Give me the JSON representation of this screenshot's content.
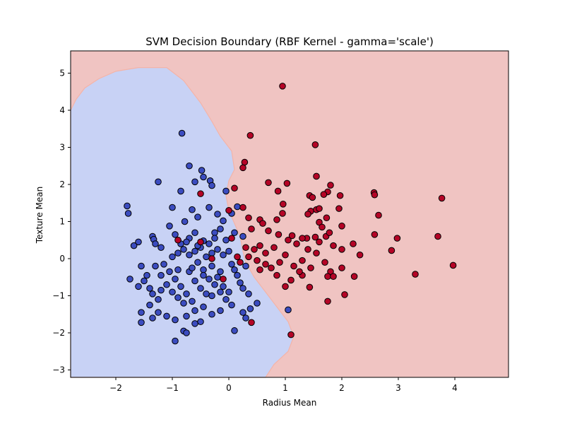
{
  "chart_data": {
    "type": "scatter",
    "title": "SVM Decision Boundary (RBF Kernel - gamma='scale')",
    "xlabel": "Radius Mean",
    "ylabel": "Texture Mean",
    "xlim": [
      -2.8,
      4.95
    ],
    "ylim": [
      -3.2,
      5.6
    ],
    "xticks": [
      -2,
      -1,
      0,
      1,
      2,
      3,
      4
    ],
    "yticks": [
      -3,
      -2,
      -1,
      0,
      1,
      2,
      3,
      4,
      5
    ],
    "grid": false,
    "colors": {
      "class0_region": "#c8d2f5",
      "class1_region": "#f0c4c2",
      "class0_point": "#3b4cc0",
      "class1_point": "#b40426",
      "point_edge": "#000000"
    },
    "boundary": [
      [
        -2.8,
        4.0
      ],
      [
        -2.7,
        4.3
      ],
      [
        -2.55,
        4.6
      ],
      [
        -2.3,
        4.85
      ],
      [
        -2.0,
        5.05
      ],
      [
        -1.6,
        5.15
      ],
      [
        -1.1,
        5.15
      ],
      [
        -0.8,
        4.8
      ],
      [
        -0.5,
        4.2
      ],
      [
        -0.3,
        3.7
      ],
      [
        -0.15,
        3.3
      ],
      [
        0.05,
        2.9
      ],
      [
        0.1,
        2.4
      ],
      [
        0.0,
        2.1
      ],
      [
        -0.05,
        1.7
      ],
      [
        0.0,
        1.3
      ],
      [
        0.2,
        0.6
      ],
      [
        0.25,
        0.2
      ],
      [
        0.3,
        -0.1
      ],
      [
        0.45,
        -0.5
      ],
      [
        0.65,
        -0.9
      ],
      [
        0.85,
        -1.3
      ],
      [
        1.05,
        -1.7
      ],
      [
        1.15,
        -2.1
      ],
      [
        1.05,
        -2.5
      ],
      [
        0.8,
        -2.85
      ],
      [
        0.65,
        -3.2
      ]
    ],
    "series": [
      {
        "class": 0,
        "points": [
          [
            -0.83,
            3.38
          ],
          [
            -0.7,
            2.5
          ],
          [
            -0.48,
            2.38
          ],
          [
            -0.45,
            2.2
          ],
          [
            -0.6,
            2.07
          ],
          [
            -0.33,
            2.1
          ],
          [
            -1.25,
            2.07
          ],
          [
            -0.3,
            1.97
          ],
          [
            -0.85,
            1.82
          ],
          [
            -0.05,
            1.82
          ],
          [
            -1.8,
            1.42
          ],
          [
            -1.78,
            1.22
          ],
          [
            -1.0,
            1.38
          ],
          [
            -0.65,
            1.32
          ],
          [
            -0.78,
            1.0
          ],
          [
            -0.55,
            1.12
          ],
          [
            -0.35,
            1.38
          ],
          [
            -0.1,
            1.02
          ],
          [
            0.15,
            1.4
          ],
          [
            0.05,
            1.22
          ],
          [
            -1.05,
            0.88
          ],
          [
            -0.95,
            0.65
          ],
          [
            -1.35,
            0.6
          ],
          [
            -1.33,
            0.52
          ],
          [
            -1.6,
            0.45
          ],
          [
            -1.68,
            0.35
          ],
          [
            -1.3,
            0.4
          ],
          [
            -1.2,
            0.3
          ],
          [
            -0.7,
            0.55
          ],
          [
            -0.6,
            0.7
          ],
          [
            -0.45,
            0.48
          ],
          [
            -0.25,
            0.7
          ],
          [
            -0.05,
            0.5
          ],
          [
            -0.15,
            0.8
          ],
          [
            0.1,
            0.7
          ],
          [
            0.25,
            0.6
          ],
          [
            -1.75,
            -0.55
          ],
          [
            -1.6,
            -0.75
          ],
          [
            -1.5,
            -0.6
          ],
          [
            -1.4,
            -0.8
          ],
          [
            -1.3,
            -0.2
          ],
          [
            -1.2,
            -0.45
          ],
          [
            -1.1,
            -0.7
          ],
          [
            -1.0,
            -0.9
          ],
          [
            -0.9,
            -1.05
          ],
          [
            -0.8,
            -1.2
          ],
          [
            -0.7,
            -0.35
          ],
          [
            -0.6,
            -0.6
          ],
          [
            -0.5,
            -0.8
          ],
          [
            -0.4,
            -0.95
          ],
          [
            -0.3,
            -0.2
          ],
          [
            -0.2,
            -0.5
          ],
          [
            -0.1,
            -0.75
          ],
          [
            0.0,
            -0.9
          ],
          [
            0.1,
            -0.3
          ],
          [
            0.2,
            -0.65
          ],
          [
            -1.55,
            -0.2
          ],
          [
            -1.45,
            -0.45
          ],
          [
            -1.35,
            -0.95
          ],
          [
            -1.25,
            -1.1
          ],
          [
            -1.15,
            -0.15
          ],
          [
            -1.05,
            -0.35
          ],
          [
            -0.95,
            -0.55
          ],
          [
            -0.85,
            -0.75
          ],
          [
            -0.75,
            -0.95
          ],
          [
            -0.65,
            -1.15
          ],
          [
            -0.55,
            -0.1
          ],
          [
            -0.45,
            -0.3
          ],
          [
            -0.35,
            -0.55
          ],
          [
            -0.25,
            -0.7
          ],
          [
            -0.15,
            -0.9
          ],
          [
            -0.05,
            -1.1
          ],
          [
            0.05,
            -0.15
          ],
          [
            0.15,
            -0.45
          ],
          [
            0.25,
            -0.8
          ],
          [
            0.35,
            -0.95
          ],
          [
            -1.0,
            0.05
          ],
          [
            -0.9,
            0.15
          ],
          [
            -0.8,
            0.25
          ],
          [
            -0.7,
            0.1
          ],
          [
            -0.6,
            0.2
          ],
          [
            -0.5,
            0.3
          ],
          [
            -0.4,
            0.05
          ],
          [
            -0.3,
            0.15
          ],
          [
            -0.2,
            0.25
          ],
          [
            -0.1,
            0.1
          ],
          [
            0.0,
            0.2
          ],
          [
            -0.85,
            0.4
          ],
          [
            -0.75,
            0.45
          ],
          [
            -0.55,
            0.35
          ],
          [
            -0.35,
            0.4
          ],
          [
            -0.25,
            0.55
          ],
          [
            -0.65,
            -0.25
          ],
          [
            -0.45,
            -0.45
          ],
          [
            -0.15,
            -0.35
          ],
          [
            -1.4,
            -1.25
          ],
          [
            -1.25,
            -1.45
          ],
          [
            -1.1,
            -1.55
          ],
          [
            -0.95,
            -1.65
          ],
          [
            -0.75,
            -1.55
          ],
          [
            -0.6,
            -1.4
          ],
          [
            -0.45,
            -1.3
          ],
          [
            -0.3,
            -1.5
          ],
          [
            -0.15,
            -1.4
          ],
          [
            0.05,
            -1.25
          ],
          [
            0.25,
            -1.45
          ],
          [
            -1.55,
            -1.45
          ],
          [
            -1.55,
            -1.72
          ],
          [
            -1.35,
            -1.6
          ],
          [
            -0.8,
            -1.95
          ],
          [
            -0.75,
            -2.0
          ],
          [
            -0.5,
            -1.7
          ],
          [
            -0.95,
            -2.22
          ],
          [
            -0.6,
            -1.75
          ],
          [
            0.1,
            -1.94
          ],
          [
            0.3,
            -1.6
          ],
          [
            0.38,
            -1.35
          ],
          [
            0.5,
            -1.2
          ],
          [
            1.05,
            -1.38
          ],
          [
            -0.3,
            -1.0
          ],
          [
            -0.9,
            -0.3
          ],
          [
            -1.2,
            -0.85
          ],
          [
            0.3,
            -0.2
          ],
          [
            -0.2,
            1.2
          ]
        ]
      },
      {
        "class": 1,
        "points": [
          [
            0.95,
            4.65
          ],
          [
            0.38,
            3.32
          ],
          [
            1.53,
            3.07
          ],
          [
            0.28,
            2.6
          ],
          [
            0.25,
            2.45
          ],
          [
            0.7,
            2.05
          ],
          [
            1.03,
            2.03
          ],
          [
            1.55,
            2.22
          ],
          [
            0.87,
            1.82
          ],
          [
            1.8,
            1.98
          ],
          [
            1.75,
            1.8
          ],
          [
            1.68,
            1.73
          ],
          [
            1.97,
            1.7
          ],
          [
            2.57,
            1.78
          ],
          [
            2.58,
            1.72
          ],
          [
            3.77,
            1.63
          ],
          [
            1.43,
            1.7
          ],
          [
            1.48,
            1.65
          ],
          [
            0.96,
            1.47
          ],
          [
            0.1,
            1.9
          ],
          [
            -0.5,
            1.75
          ],
          [
            0.0,
            1.3
          ],
          [
            0.95,
            1.22
          ],
          [
            1.45,
            1.28
          ],
          [
            1.55,
            1.32
          ],
          [
            1.6,
            1.35
          ],
          [
            1.95,
            1.35
          ],
          [
            2.65,
            1.17
          ],
          [
            0.25,
            1.38
          ],
          [
            0.35,
            1.1
          ],
          [
            0.55,
            1.05
          ],
          [
            0.6,
            0.95
          ],
          [
            0.85,
            1.05
          ],
          [
            1.4,
            1.2
          ],
          [
            1.73,
            1.1
          ],
          [
            2.0,
            0.88
          ],
          [
            1.6,
            0.98
          ],
          [
            1.65,
            0.85
          ],
          [
            0.4,
            0.8
          ],
          [
            0.7,
            0.75
          ],
          [
            0.88,
            0.65
          ],
          [
            1.12,
            0.62
          ],
          [
            1.38,
            0.55
          ],
          [
            1.53,
            0.58
          ],
          [
            1.72,
            0.6
          ],
          [
            1.78,
            0.7
          ],
          [
            2.2,
            0.4
          ],
          [
            2.58,
            0.65
          ],
          [
            2.98,
            0.55
          ],
          [
            3.7,
            0.6
          ],
          [
            0.3,
            0.3
          ],
          [
            0.45,
            0.25
          ],
          [
            0.55,
            0.35
          ],
          [
            0.65,
            0.15
          ],
          [
            0.8,
            0.3
          ],
          [
            1.05,
            0.5
          ],
          [
            1.2,
            0.4
          ],
          [
            1.3,
            0.55
          ],
          [
            1.4,
            0.25
          ],
          [
            1.6,
            0.45
          ],
          [
            1.85,
            0.35
          ],
          [
            2.0,
            0.25
          ],
          [
            2.32,
            0.1
          ],
          [
            2.88,
            0.22
          ],
          [
            0.35,
            0.05
          ],
          [
            0.5,
            -0.05
          ],
          [
            0.65,
            -0.15
          ],
          [
            0.75,
            -0.25
          ],
          [
            0.9,
            -0.1
          ],
          [
            1.0,
            0.1
          ],
          [
            1.15,
            -0.2
          ],
          [
            1.3,
            -0.05
          ],
          [
            1.45,
            -0.25
          ],
          [
            1.55,
            0.15
          ],
          [
            1.7,
            -0.1
          ],
          [
            1.8,
            -0.35
          ],
          [
            2.0,
            -0.25
          ],
          [
            2.22,
            -0.48
          ],
          [
            3.3,
            -0.42
          ],
          [
            3.97,
            -0.18
          ],
          [
            0.55,
            -0.3
          ],
          [
            0.85,
            -0.45
          ],
          [
            1.1,
            -0.58
          ],
          [
            1.3,
            -0.45
          ],
          [
            1.43,
            -0.77
          ],
          [
            1.75,
            -0.48
          ],
          [
            1.85,
            -0.48
          ],
          [
            2.05,
            -0.97
          ],
          [
            1.75,
            -1.15
          ],
          [
            0.4,
            -1.72
          ],
          [
            -0.1,
            -0.55
          ],
          [
            -0.9,
            0.5
          ],
          [
            -0.5,
            0.45
          ],
          [
            0.05,
            0.55
          ],
          [
            -0.3,
            0.0
          ],
          [
            0.15,
            0.05
          ],
          [
            0.2,
            -0.1
          ],
          [
            1.1,
            -2.05
          ],
          [
            1.25,
            -0.35
          ],
          [
            1.0,
            -0.75
          ]
        ]
      }
    ]
  }
}
